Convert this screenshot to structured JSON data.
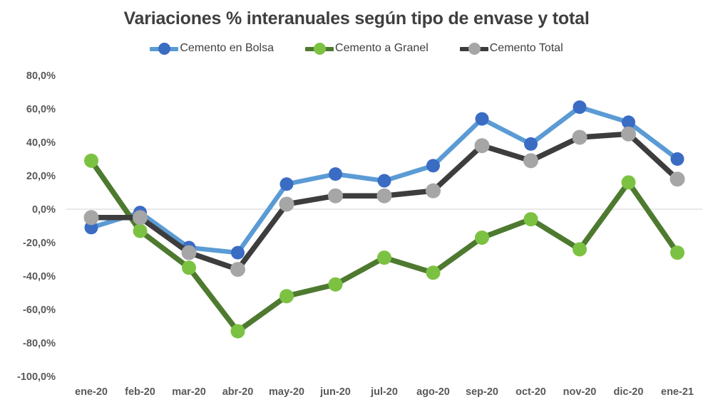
{
  "title": "Variaciones % interanuales según tipo de envase y total",
  "chart_data": {
    "type": "line",
    "title": "Variaciones % interanuales según tipo de envase y total",
    "categories": [
      "ene-20",
      "feb-20",
      "mar-20",
      "abr-20",
      "may-20",
      "jun-20",
      "jul-20",
      "ago-20",
      "sep-20",
      "oct-20",
      "nov-20",
      "dic-20",
      "ene-21"
    ],
    "series": [
      {
        "name": "Cemento en Bolsa",
        "line_color": "#5B9BD5",
        "marker_color": "#3B6CC4",
        "values": [
          -11,
          -2,
          -23,
          -26,
          15,
          21,
          17,
          26,
          54,
          39,
          61,
          52,
          30
        ]
      },
      {
        "name": "Cemento a Granel",
        "line_color": "#4E7A30",
        "marker_color": "#7CC242",
        "values": [
          29,
          -13,
          -35,
          -73,
          -52,
          -45,
          -29,
          -38,
          -17,
          -6,
          -24,
          16,
          -26
        ]
      },
      {
        "name": "Cemento Total",
        "line_color": "#3D3D3D",
        "marker_color": "#A6A6A6",
        "values": [
          -5,
          -5,
          -26,
          -36,
          3,
          8,
          8,
          11,
          38,
          29,
          43,
          45,
          18
        ]
      }
    ],
    "xlabel": "",
    "ylabel": "",
    "ylim": [
      -100,
      80
    ],
    "ytick_values": [
      80,
      60,
      40,
      20,
      0,
      -20,
      -40,
      -60,
      -80,
      -100
    ],
    "ytick_labels": [
      "80,0%",
      "60,0%",
      "40,0%",
      "20,0%",
      "0,0%",
      "-20,0%",
      "-40,0%",
      "-60,0%",
      "-80,0%",
      "-100,0%"
    ],
    "grid": "zero-line-only",
    "legend_position": "top",
    "colors": {
      "gridline": "#D9D9D9",
      "tick_text": "#595959",
      "title_text": "#3F3F3F",
      "background": "#FFFFFF"
    }
  }
}
